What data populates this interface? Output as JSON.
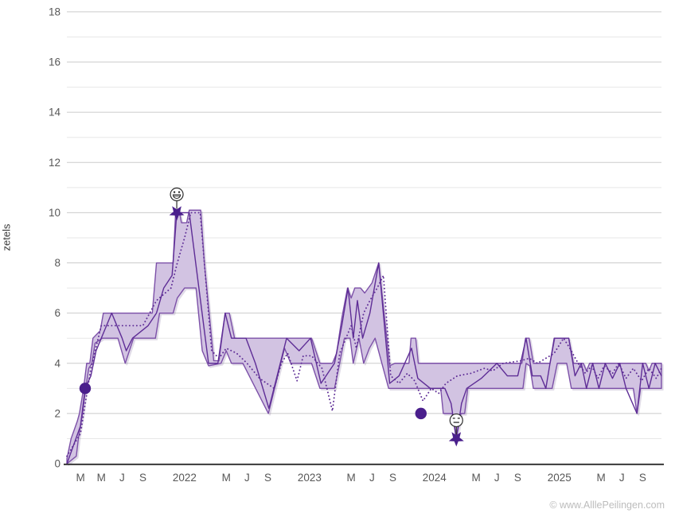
{
  "page": {
    "watermark": "© www.AlllePeilingen.com"
  },
  "colors": {
    "band_fill": "#d2c3e2",
    "band_stroke": "#7c50a8",
    "line": "#5e2d96",
    "marker": "#4a1f8c",
    "grid_major": "#cbcbcb",
    "grid_minor": "#e7e7e7",
    "axis": "#2b2b2b",
    "tick_text": "#575757",
    "face_stroke": "#2b2b2b"
  },
  "chart_data": {
    "type": "line",
    "title": "",
    "xlabel": "",
    "ylabel": "zetels",
    "ylim": [
      0,
      18
    ],
    "y_major_step": 2,
    "y_minor_step": 1,
    "y_tick_labels": [
      "0",
      "2",
      "4",
      "6",
      "8",
      "10",
      "12",
      "14",
      "16",
      "18"
    ],
    "x_unit": "months since 2021-02",
    "x_ticks": [
      {
        "m": 1,
        "label": "M"
      },
      {
        "m": 3,
        "label": "M"
      },
      {
        "m": 5,
        "label": "J"
      },
      {
        "m": 7,
        "label": "S"
      },
      {
        "m": 11,
        "label": "2022"
      },
      {
        "m": 15,
        "label": "M"
      },
      {
        "m": 17,
        "label": "J"
      },
      {
        "m": 19,
        "label": "S"
      },
      {
        "m": 23,
        "label": "2023"
      },
      {
        "m": 27,
        "label": "M"
      },
      {
        "m": 29,
        "label": "J"
      },
      {
        "m": 31,
        "label": "S"
      },
      {
        "m": 35,
        "label": "2024"
      },
      {
        "m": 39,
        "label": "M"
      },
      {
        "m": 41,
        "label": "J"
      },
      {
        "m": 43,
        "label": "S"
      },
      {
        "m": 47,
        "label": "2025"
      },
      {
        "m": 51,
        "label": "M"
      },
      {
        "m": 53,
        "label": "J"
      },
      {
        "m": 55,
        "label": "S"
      }
    ],
    "band": {
      "upper": [
        [
          -0.3,
          0.2
        ],
        [
          0.1,
          1
        ],
        [
          0.7,
          1.7
        ],
        [
          0.9,
          2
        ],
        [
          1.3,
          3
        ],
        [
          1.6,
          4
        ],
        [
          1.9,
          4
        ],
        [
          2.2,
          5
        ],
        [
          2.9,
          5.3
        ],
        [
          3.2,
          6
        ],
        [
          5.2,
          6
        ],
        [
          7.9,
          6
        ],
        [
          8.3,
          8
        ],
        [
          9.9,
          8
        ],
        [
          10.15,
          10.1
        ],
        [
          10.45,
          10.15
        ],
        [
          10.7,
          9.6
        ],
        [
          11.2,
          9.6
        ],
        [
          11.45,
          10.1
        ],
        [
          12.55,
          10.1
        ],
        [
          12.9,
          8
        ],
        [
          13.8,
          4.1
        ],
        [
          14.3,
          4.1
        ],
        [
          14.9,
          6
        ],
        [
          15.3,
          6
        ],
        [
          15.8,
          5
        ],
        [
          23.2,
          5
        ],
        [
          24.0,
          4
        ],
        [
          25.2,
          4
        ],
        [
          25.6,
          4.4
        ],
        [
          26.1,
          5.8
        ],
        [
          26.65,
          7
        ],
        [
          27.0,
          6.6
        ],
        [
          27.35,
          7
        ],
        [
          27.9,
          7
        ],
        [
          28.3,
          6.8
        ],
        [
          29.0,
          7.2
        ],
        [
          29.65,
          8
        ],
        [
          30.7,
          3.9
        ],
        [
          31.2,
          4
        ],
        [
          32.55,
          4
        ],
        [
          32.75,
          5
        ],
        [
          33.2,
          5
        ],
        [
          33.45,
          4
        ],
        [
          43.4,
          4
        ],
        [
          43.75,
          5
        ],
        [
          44.1,
          5
        ],
        [
          44.5,
          4
        ],
        [
          46.1,
          4
        ],
        [
          46.55,
          5
        ],
        [
          47.9,
          5
        ],
        [
          48.35,
          4
        ],
        [
          49.3,
          4
        ],
        [
          49.6,
          3.7
        ],
        [
          49.9,
          4
        ],
        [
          55.3,
          4
        ],
        [
          55.6,
          3.7
        ],
        [
          55.9,
          4
        ],
        [
          56.8,
          4
        ]
      ],
      "lower": [
        [
          -0.3,
          0
        ],
        [
          0.6,
          0.3
        ],
        [
          0.8,
          1
        ],
        [
          1.2,
          2
        ],
        [
          1.5,
          3
        ],
        [
          1.8,
          3.8
        ],
        [
          2.1,
          4
        ],
        [
          2.4,
          4.8
        ],
        [
          3.1,
          5
        ],
        [
          4.6,
          5
        ],
        [
          5.3,
          4
        ],
        [
          6.1,
          5
        ],
        [
          8.2,
          5
        ],
        [
          8.6,
          6
        ],
        [
          9.9,
          6
        ],
        [
          10.3,
          6.6
        ],
        [
          11.0,
          7
        ],
        [
          12.1,
          7
        ],
        [
          12.7,
          4.5
        ],
        [
          13.3,
          3.9
        ],
        [
          14.5,
          4
        ],
        [
          15.0,
          4.5
        ],
        [
          15.5,
          4
        ],
        [
          16.6,
          4
        ],
        [
          19.05,
          2
        ],
        [
          20.6,
          4.6
        ],
        [
          21.2,
          4
        ],
        [
          23.2,
          4
        ],
        [
          24.0,
          3
        ],
        [
          25.4,
          3
        ],
        [
          25.9,
          4
        ],
        [
          26.35,
          5
        ],
        [
          26.9,
          5
        ],
        [
          27.2,
          4
        ],
        [
          27.75,
          5
        ],
        [
          28.2,
          4
        ],
        [
          28.75,
          4.6
        ],
        [
          29.3,
          5
        ],
        [
          29.95,
          4
        ],
        [
          30.6,
          3
        ],
        [
          33.9,
          3
        ],
        [
          35.6,
          3
        ],
        [
          35.85,
          2
        ],
        [
          36.7,
          2
        ],
        [
          37.1,
          1
        ],
        [
          37.55,
          2
        ],
        [
          37.9,
          2
        ],
        [
          38.2,
          3
        ],
        [
          43.5,
          3
        ],
        [
          43.8,
          4
        ],
        [
          44.15,
          3.9
        ],
        [
          44.5,
          3
        ],
        [
          46.3,
          3
        ],
        [
          46.8,
          4
        ],
        [
          47.7,
          4
        ],
        [
          48.15,
          3
        ],
        [
          54.1,
          3
        ],
        [
          54.45,
          2
        ],
        [
          54.8,
          3
        ],
        [
          56.8,
          3
        ]
      ]
    },
    "series": [
      {
        "name": "poll-line-solid",
        "style": "solid",
        "points": [
          [
            -0.3,
            0
          ],
          [
            1.0,
            1.5
          ],
          [
            1.45,
            3
          ],
          [
            2.0,
            3.5
          ],
          [
            2.5,
            4.5
          ],
          [
            3.0,
            5
          ],
          [
            4.0,
            6
          ],
          [
            5.0,
            5
          ],
          [
            5.4,
            4.5
          ],
          [
            6.0,
            5
          ],
          [
            7.5,
            5.5
          ],
          [
            8.3,
            6
          ],
          [
            9.0,
            7
          ],
          [
            9.8,
            7.5
          ],
          [
            10.25,
            10
          ],
          [
            11.45,
            10
          ],
          [
            13.3,
            4
          ],
          [
            14.2,
            4
          ],
          [
            14.9,
            6
          ],
          [
            15.5,
            5
          ],
          [
            16.9,
            5
          ],
          [
            17.8,
            4
          ],
          [
            19.1,
            2.2
          ],
          [
            20.8,
            5
          ],
          [
            22.0,
            4.5
          ],
          [
            23.1,
            5
          ],
          [
            24.1,
            3.2
          ],
          [
            25.4,
            4
          ],
          [
            26.1,
            5.5
          ],
          [
            26.7,
            7
          ],
          [
            27.2,
            5
          ],
          [
            27.6,
            6.5
          ],
          [
            28.1,
            5
          ],
          [
            28.8,
            6
          ],
          [
            29.65,
            8
          ],
          [
            30.7,
            3.2
          ],
          [
            31.6,
            3.5
          ],
          [
            32.8,
            4.6
          ],
          [
            33.4,
            3.4
          ],
          [
            34.6,
            3
          ],
          [
            36.0,
            3
          ],
          [
            36.6,
            2.4
          ],
          [
            37.1,
            1
          ],
          [
            37.6,
            2.4
          ],
          [
            38.1,
            3
          ],
          [
            39.5,
            3.4
          ],
          [
            41.0,
            4
          ],
          [
            42.0,
            3.5
          ],
          [
            43.0,
            3.5
          ],
          [
            43.8,
            5
          ],
          [
            44.4,
            3.5
          ],
          [
            45.2,
            3.5
          ],
          [
            45.7,
            3
          ],
          [
            46.5,
            5
          ],
          [
            47.9,
            5
          ],
          [
            48.5,
            3.5
          ],
          [
            49.1,
            4
          ],
          [
            49.6,
            3
          ],
          [
            50.2,
            4
          ],
          [
            50.8,
            3
          ],
          [
            51.4,
            4
          ],
          [
            52.1,
            3.4
          ],
          [
            52.8,
            4
          ],
          [
            53.4,
            3
          ],
          [
            54.45,
            2
          ],
          [
            55.0,
            4
          ],
          [
            55.6,
            3
          ],
          [
            56.2,
            4
          ],
          [
            56.8,
            3.5
          ]
        ]
      },
      {
        "name": "poll-line-dotted",
        "style": "dotted",
        "points": [
          [
            -0.3,
            0.3
          ],
          [
            1.0,
            1.2
          ],
          [
            2.0,
            3.8
          ],
          [
            3.0,
            5.5
          ],
          [
            7.0,
            5.5
          ],
          [
            8.3,
            6.5
          ],
          [
            9.7,
            7
          ],
          [
            10.3,
            8
          ],
          [
            11.0,
            9
          ],
          [
            11.6,
            10
          ],
          [
            12.5,
            10
          ],
          [
            13.6,
            4.5
          ],
          [
            14.3,
            4.2
          ],
          [
            15.0,
            4.6
          ],
          [
            16.0,
            4.4
          ],
          [
            17.0,
            4
          ],
          [
            18.2,
            3.4
          ],
          [
            19.6,
            3
          ],
          [
            20.3,
            4
          ],
          [
            20.9,
            4.4
          ],
          [
            21.8,
            3.3
          ],
          [
            22.4,
            4.3
          ],
          [
            23.2,
            4.3
          ],
          [
            24.2,
            3.8
          ],
          [
            25.2,
            2.1
          ],
          [
            25.9,
            4.4
          ],
          [
            26.5,
            5
          ],
          [
            27.0,
            5.5
          ],
          [
            27.5,
            4.6
          ],
          [
            28.2,
            6
          ],
          [
            28.8,
            6.5
          ],
          [
            29.5,
            7
          ],
          [
            30.1,
            7.5
          ],
          [
            30.8,
            3.5
          ],
          [
            31.6,
            3.2
          ],
          [
            32.4,
            3.6
          ],
          [
            33.1,
            3.3
          ],
          [
            33.9,
            2.5
          ],
          [
            34.7,
            3
          ],
          [
            35.4,
            2.8
          ],
          [
            36.1,
            3.2
          ],
          [
            37.2,
            3.5
          ],
          [
            38.5,
            3.6
          ],
          [
            39.8,
            3.8
          ],
          [
            40.6,
            3.7
          ],
          [
            41.6,
            4
          ],
          [
            43.3,
            4.1
          ],
          [
            44.1,
            4.2
          ],
          [
            44.9,
            4
          ],
          [
            45.7,
            4.2
          ],
          [
            46.5,
            4.4
          ],
          [
            47.4,
            5
          ],
          [
            48.0,
            4.6
          ],
          [
            48.8,
            4
          ],
          [
            49.5,
            3.6
          ],
          [
            50.1,
            3.9
          ],
          [
            50.7,
            3.4
          ],
          [
            51.3,
            3.9
          ],
          [
            52.1,
            3.6
          ],
          [
            52.7,
            4
          ],
          [
            53.4,
            3.4
          ],
          [
            54.1,
            3.8
          ],
          [
            54.9,
            3.3
          ],
          [
            55.6,
            3.8
          ],
          [
            56.3,
            3.4
          ],
          [
            56.8,
            3.8
          ]
        ]
      }
    ],
    "markers": [
      {
        "shape": "dot",
        "m": 1.45,
        "value": 3,
        "name": "election-result-dot-2021"
      },
      {
        "shape": "star",
        "m": 10.25,
        "value": 10,
        "face": "grin",
        "name": "record-high-star"
      },
      {
        "shape": "dot",
        "m": 33.7,
        "value": 2,
        "name": "election-result-dot-2023"
      },
      {
        "shape": "star",
        "m": 37.1,
        "value": 1,
        "face": "neutral",
        "name": "record-low-star"
      }
    ]
  }
}
